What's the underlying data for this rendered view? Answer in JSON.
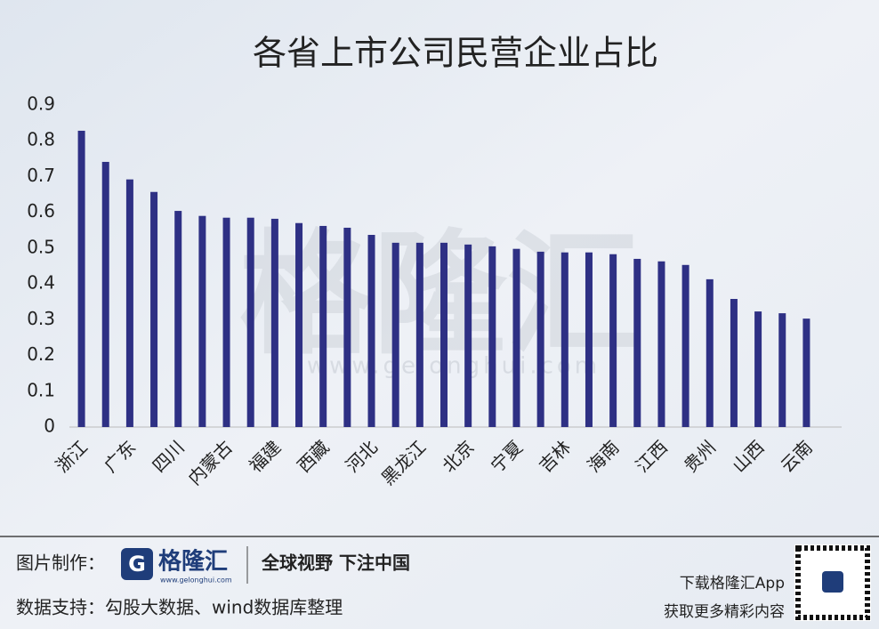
{
  "chart_data": {
    "type": "bar",
    "title": "各省上市公司民营企业占比",
    "categories": [
      "浙江",
      null,
      "广东",
      null,
      "四川",
      null,
      "内蒙古",
      null,
      "福建",
      null,
      "西藏",
      null,
      "河北",
      null,
      "黑龙江",
      null,
      "北京",
      null,
      "宁夏",
      null,
      "吉林",
      null,
      "海南",
      null,
      "江西",
      null,
      "贵州",
      null,
      "山西",
      null,
      "云南"
    ],
    "values": [
      0.828,
      0.741,
      0.692,
      0.657,
      0.604,
      0.59,
      0.585,
      0.585,
      0.582,
      0.57,
      0.562,
      0.557,
      0.537,
      0.515,
      0.515,
      0.515,
      0.51,
      0.505,
      0.498,
      0.49,
      0.488,
      0.488,
      0.483,
      0.47,
      0.463,
      0.453,
      0.413,
      0.358,
      0.323,
      0.318,
      0.303
    ],
    "color": "#2e3084",
    "ylim": [
      0,
      0.9
    ],
    "yticks": [
      0,
      0.1,
      0.2,
      0.3,
      0.4,
      0.5,
      0.6,
      0.7,
      0.8,
      0.9
    ],
    "grid": false
  },
  "watermark": {
    "logo": "格隆汇",
    "url": "www.gelonghui.com"
  },
  "footer": {
    "made_by_label": "图片制作：",
    "logo_name": "格隆汇",
    "logo_url": "www.gelonghui.com",
    "slogan": "全球视野 下注中国",
    "data_support": "数据支持：勾股大数据、wind数据库整理",
    "app_line1": "下载格隆汇App",
    "app_line2": "获取更多精彩内容"
  }
}
